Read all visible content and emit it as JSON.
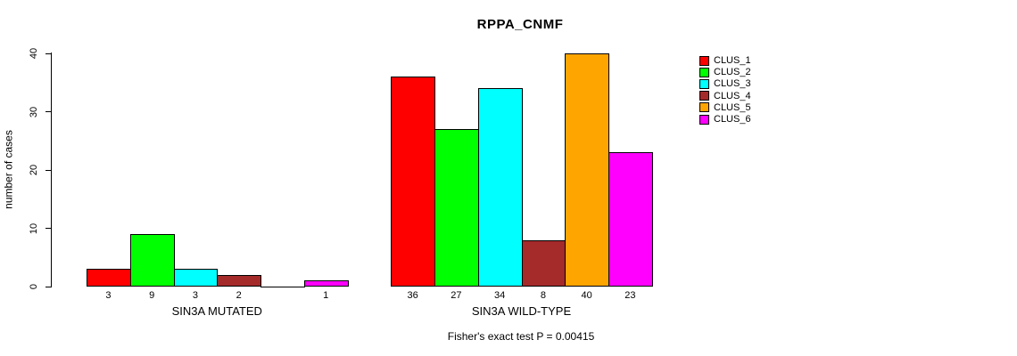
{
  "title": "RPPA_CNMF",
  "footer": "Fisher's exact test P = 0.00415",
  "chart_data": {
    "type": "bar",
    "title": "RPPA_CNMF",
    "xlabel": "",
    "ylabel": "number of cases",
    "ylim": [
      0,
      40
    ],
    "yticks": [
      0,
      10,
      20,
      30,
      40
    ],
    "grid": false,
    "legend_position": "right-outside",
    "series_names": [
      "CLUS_1",
      "CLUS_2",
      "CLUS_3",
      "CLUS_4",
      "CLUS_5",
      "CLUS_6"
    ],
    "series_colors": [
      "#FF0000",
      "#00FF00",
      "#00FFFF",
      "#A52A2A",
      "#FFA500",
      "#FF00FF"
    ],
    "groups": [
      {
        "label": "SIN3A MUTATED",
        "values": [
          3,
          9,
          3,
          2,
          0,
          1
        ],
        "bar_labels": [
          "3",
          "9",
          "3",
          "2",
          "",
          "1"
        ]
      },
      {
        "label": "SIN3A WILD-TYPE",
        "values": [
          36,
          27,
          34,
          8,
          40,
          23
        ],
        "bar_labels": [
          "36",
          "27",
          "34",
          "8",
          "40",
          "23"
        ]
      }
    ],
    "annotation": "Fisher's exact test P = 0.00415"
  }
}
